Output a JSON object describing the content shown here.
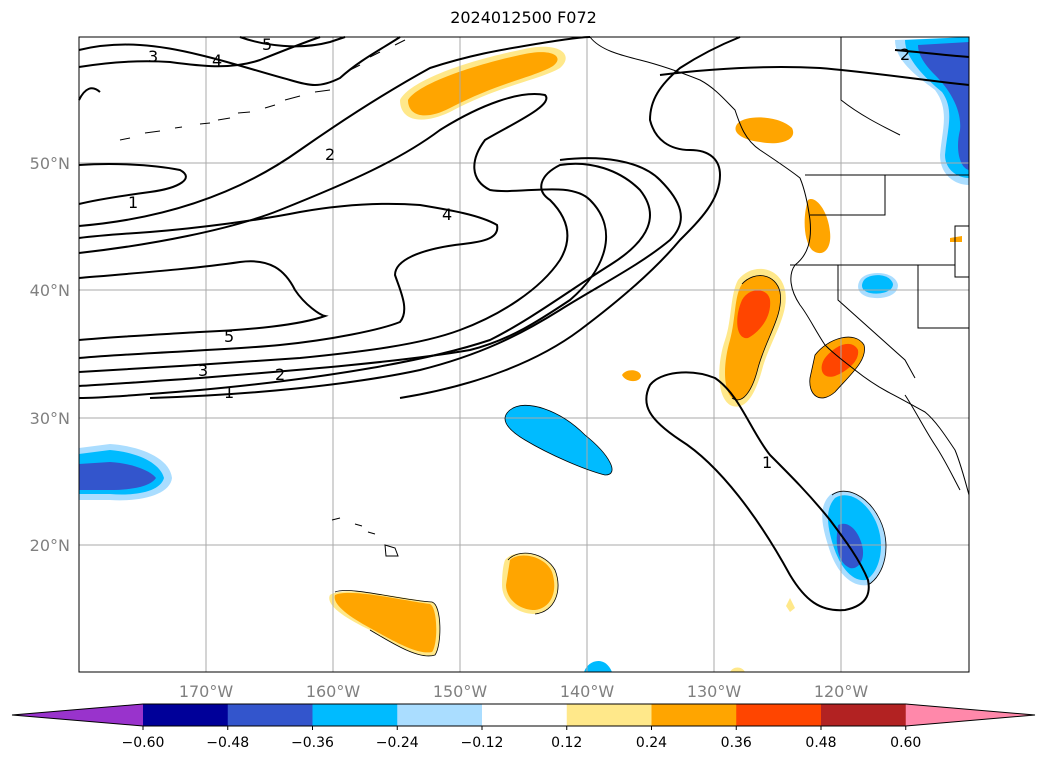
{
  "title": "2024012500 F072",
  "map": {
    "lat_labels": [
      "50°N",
      "40°N",
      "30°N",
      "20°N"
    ],
    "lon_labels": [
      "170°W",
      "160°W",
      "150°W",
      "140°W",
      "130°W",
      "120°W"
    ],
    "contour_labels": [
      "3",
      "4",
      "5",
      "2",
      "1",
      "4",
      "5",
      "3",
      "2",
      "1",
      "1",
      "2"
    ]
  },
  "colorbar": {
    "ticks": [
      "−0.60",
      "−0.48",
      "−0.36",
      "−0.24",
      "−0.12",
      "0.12",
      "0.24",
      "0.36",
      "0.48",
      "0.60"
    ],
    "colors": [
      "#9933cc",
      "#000099",
      "#3355cc",
      "#00bbff",
      "#aaddff",
      "#ffffff",
      "#ffe88a",
      "#ffa500",
      "#ff4500",
      "#b22222",
      "#ff88aa"
    ]
  }
}
